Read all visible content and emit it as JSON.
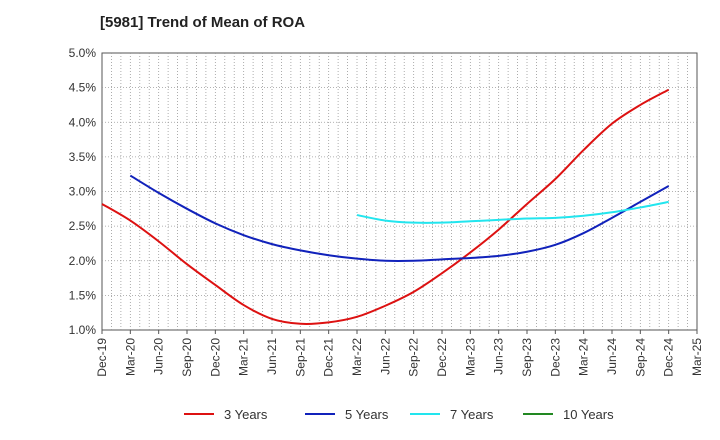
{
  "chart_data": {
    "type": "line",
    "title": "[5981]  Trend of Mean of ROA",
    "xlabel": "",
    "ylabel": "",
    "ylim": [
      1.0,
      5.0
    ],
    "y_ticks": [
      "1.0%",
      "1.5%",
      "2.0%",
      "2.5%",
      "3.0%",
      "3.5%",
      "4.0%",
      "4.5%",
      "5.0%"
    ],
    "x_ticks": [
      "Dec-19",
      "Mar-20",
      "Jun-20",
      "Sep-20",
      "Dec-20",
      "Mar-21",
      "Jun-21",
      "Sep-21",
      "Dec-21",
      "Mar-22",
      "Jun-22",
      "Sep-22",
      "Dec-22",
      "Mar-23",
      "Jun-23",
      "Sep-23",
      "Dec-23",
      "Mar-24",
      "Jun-24",
      "Sep-24",
      "Dec-24",
      "Mar-25"
    ],
    "grid": true,
    "legend_position": "bottom",
    "series": [
      {
        "name": "3 Years",
        "color": "#dd1111",
        "x": [
          "Dec-19",
          "Mar-20",
          "Jun-20",
          "Sep-20",
          "Dec-20",
          "Mar-21",
          "Jun-21",
          "Sep-21",
          "Dec-21",
          "Mar-22",
          "Jun-22",
          "Sep-22",
          "Dec-22",
          "Mar-23",
          "Jun-23",
          "Sep-23",
          "Dec-23",
          "Mar-24",
          "Jun-24",
          "Sep-24",
          "Dec-24"
        ],
        "values": [
          2.82,
          2.58,
          2.28,
          1.95,
          1.65,
          1.36,
          1.16,
          1.09,
          1.11,
          1.19,
          1.35,
          1.55,
          1.82,
          2.12,
          2.45,
          2.82,
          3.18,
          3.6,
          3.98,
          4.25,
          4.47
        ]
      },
      {
        "name": "5 Years",
        "color": "#1122bb",
        "x": [
          "Mar-20",
          "Jun-20",
          "Sep-20",
          "Dec-20",
          "Mar-21",
          "Jun-21",
          "Sep-21",
          "Dec-21",
          "Mar-22",
          "Jun-22",
          "Sep-22",
          "Dec-22",
          "Mar-23",
          "Jun-23",
          "Sep-23",
          "Dec-23",
          "Mar-24",
          "Jun-24",
          "Sep-24",
          "Dec-24"
        ],
        "values": [
          3.23,
          2.98,
          2.75,
          2.54,
          2.37,
          2.24,
          2.15,
          2.08,
          2.03,
          2.0,
          2.0,
          2.02,
          2.04,
          2.07,
          2.13,
          2.23,
          2.4,
          2.62,
          2.85,
          3.08
        ]
      },
      {
        "name": "7 Years",
        "color": "#22e5ee",
        "x": [
          "Mar-22",
          "Jun-22",
          "Sep-22",
          "Dec-22",
          "Mar-23",
          "Jun-23",
          "Sep-23",
          "Dec-23",
          "Mar-24",
          "Jun-24",
          "Sep-24",
          "Dec-24"
        ],
        "values": [
          2.66,
          2.58,
          2.55,
          2.55,
          2.57,
          2.59,
          2.61,
          2.62,
          2.65,
          2.7,
          2.77,
          2.85
        ]
      },
      {
        "name": "10 Years",
        "color": "#228822",
        "x": [],
        "values": []
      }
    ]
  }
}
